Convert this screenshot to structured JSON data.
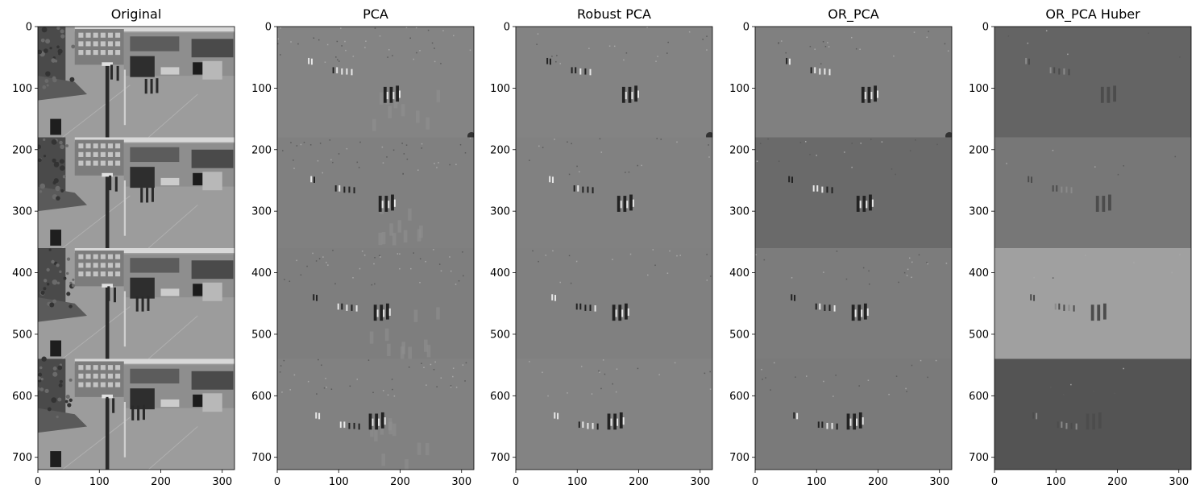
{
  "chart_data": {
    "type": "image_grid",
    "xlim": [
      0,
      320
    ],
    "ylim": [
      720,
      0
    ],
    "x_ticks": [
      0,
      100,
      200,
      300
    ],
    "y_ticks": [
      0,
      100,
      200,
      300,
      400,
      500,
      600,
      700
    ],
    "frame_height": 180,
    "frames_per_panel": 4,
    "panels": [
      {
        "title": "Original",
        "kind": "scene",
        "frame_backgrounds": [
          "#8a8a8a",
          "#8a8a8a",
          "#8a8a8a",
          "#8a8a8a"
        ]
      },
      {
        "title": "PCA",
        "kind": "residual",
        "frame_backgrounds": [
          "#848484",
          "#808080",
          "#7e7e7e",
          "#818181"
        ],
        "ghosting": true
      },
      {
        "title": "Robust PCA",
        "kind": "residual",
        "frame_backgrounds": [
          "#838383",
          "#818181",
          "#808080",
          "#838383"
        ],
        "ghosting": false
      },
      {
        "title": "OR_PCA",
        "kind": "residual",
        "frame_backgrounds": [
          "#808080",
          "#6a6a6a",
          "#7c7c7c",
          "#7a7a7a"
        ],
        "ghosting": false
      },
      {
        "title": "OR_PCA Huber",
        "kind": "residual",
        "frame_backgrounds": [
          "#646464",
          "#777777",
          "#a0a0a0",
          "#545454"
        ],
        "ghosting": false
      }
    ],
    "colors": {
      "axis": "#000000",
      "figure_background": "#ffffff"
    }
  }
}
